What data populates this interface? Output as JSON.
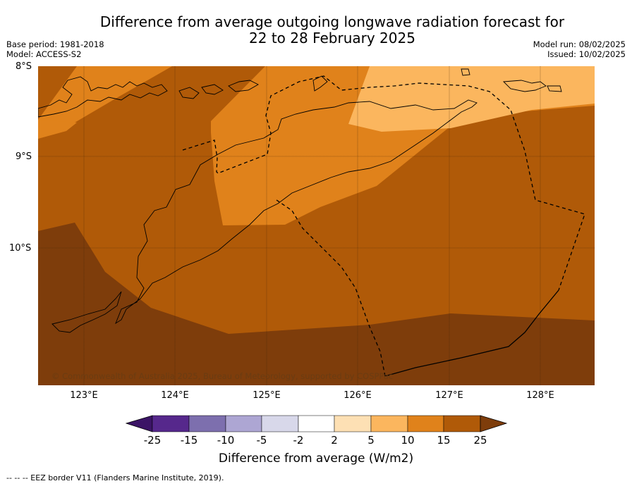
{
  "title_line1": "Difference from average outgoing longwave radiation forecast for",
  "title_line2": "22 to 28 February 2025",
  "meta": {
    "base_period": "Base period: 1981-2018",
    "model": "Model: ACCESS-S2",
    "model_run": "Model run: 08/02/2025",
    "issued": "Issued: 10/02/2025"
  },
  "map": {
    "lat_labels": [
      "8°S",
      "9°S",
      "10°S"
    ],
    "lon_labels": [
      "123°E",
      "124°E",
      "125°E",
      "126°E",
      "127°E",
      "128°E"
    ],
    "copyright": "© Commonwealth of Australia 2025, Bureau of Meteorology, supported by COSPPac"
  },
  "colorbar": {
    "ticks": [
      "-25",
      "-15",
      "-10",
      "-5",
      "-2",
      "2",
      "5",
      "10",
      "15",
      "25"
    ],
    "colors": [
      "#3b1466",
      "#56288c",
      "#7d6fae",
      "#ada6d3",
      "#d8d8ea",
      "#ffffff",
      "#fde0b4",
      "#fbb65e",
      "#e0821b",
      "#b05a08",
      "#7e3d0b"
    ],
    "label": "Difference from average (W/m2)"
  },
  "footnote": "-- -- -- EEZ border V11 (Flanders Marine Institute, 2019).",
  "chart_data": {
    "type": "heatmap",
    "title": "Difference from average outgoing longwave radiation forecast for 22 to 28 February 2025",
    "xlabel": "",
    "ylabel": "",
    "x_range_deg_e": [
      122.5,
      128.6
    ],
    "y_range_deg_s": [
      8.0,
      11.5
    ],
    "bins_w_m2": [
      "2 to 5",
      "5 to 10",
      "10 to 15",
      "15 to 25",
      "above 25"
    ],
    "regions_observed": [
      "5 to 10 in the north-east near 126.5–128.5°E, 8–8.6°S",
      "10 to 15 centred on 125°E–127°E, 8–9.8°S",
      "15 to 25 across most of the domain",
      "above 25 in the south and south-west"
    ],
    "colorbar_label": "Difference from average (W/m2)"
  }
}
